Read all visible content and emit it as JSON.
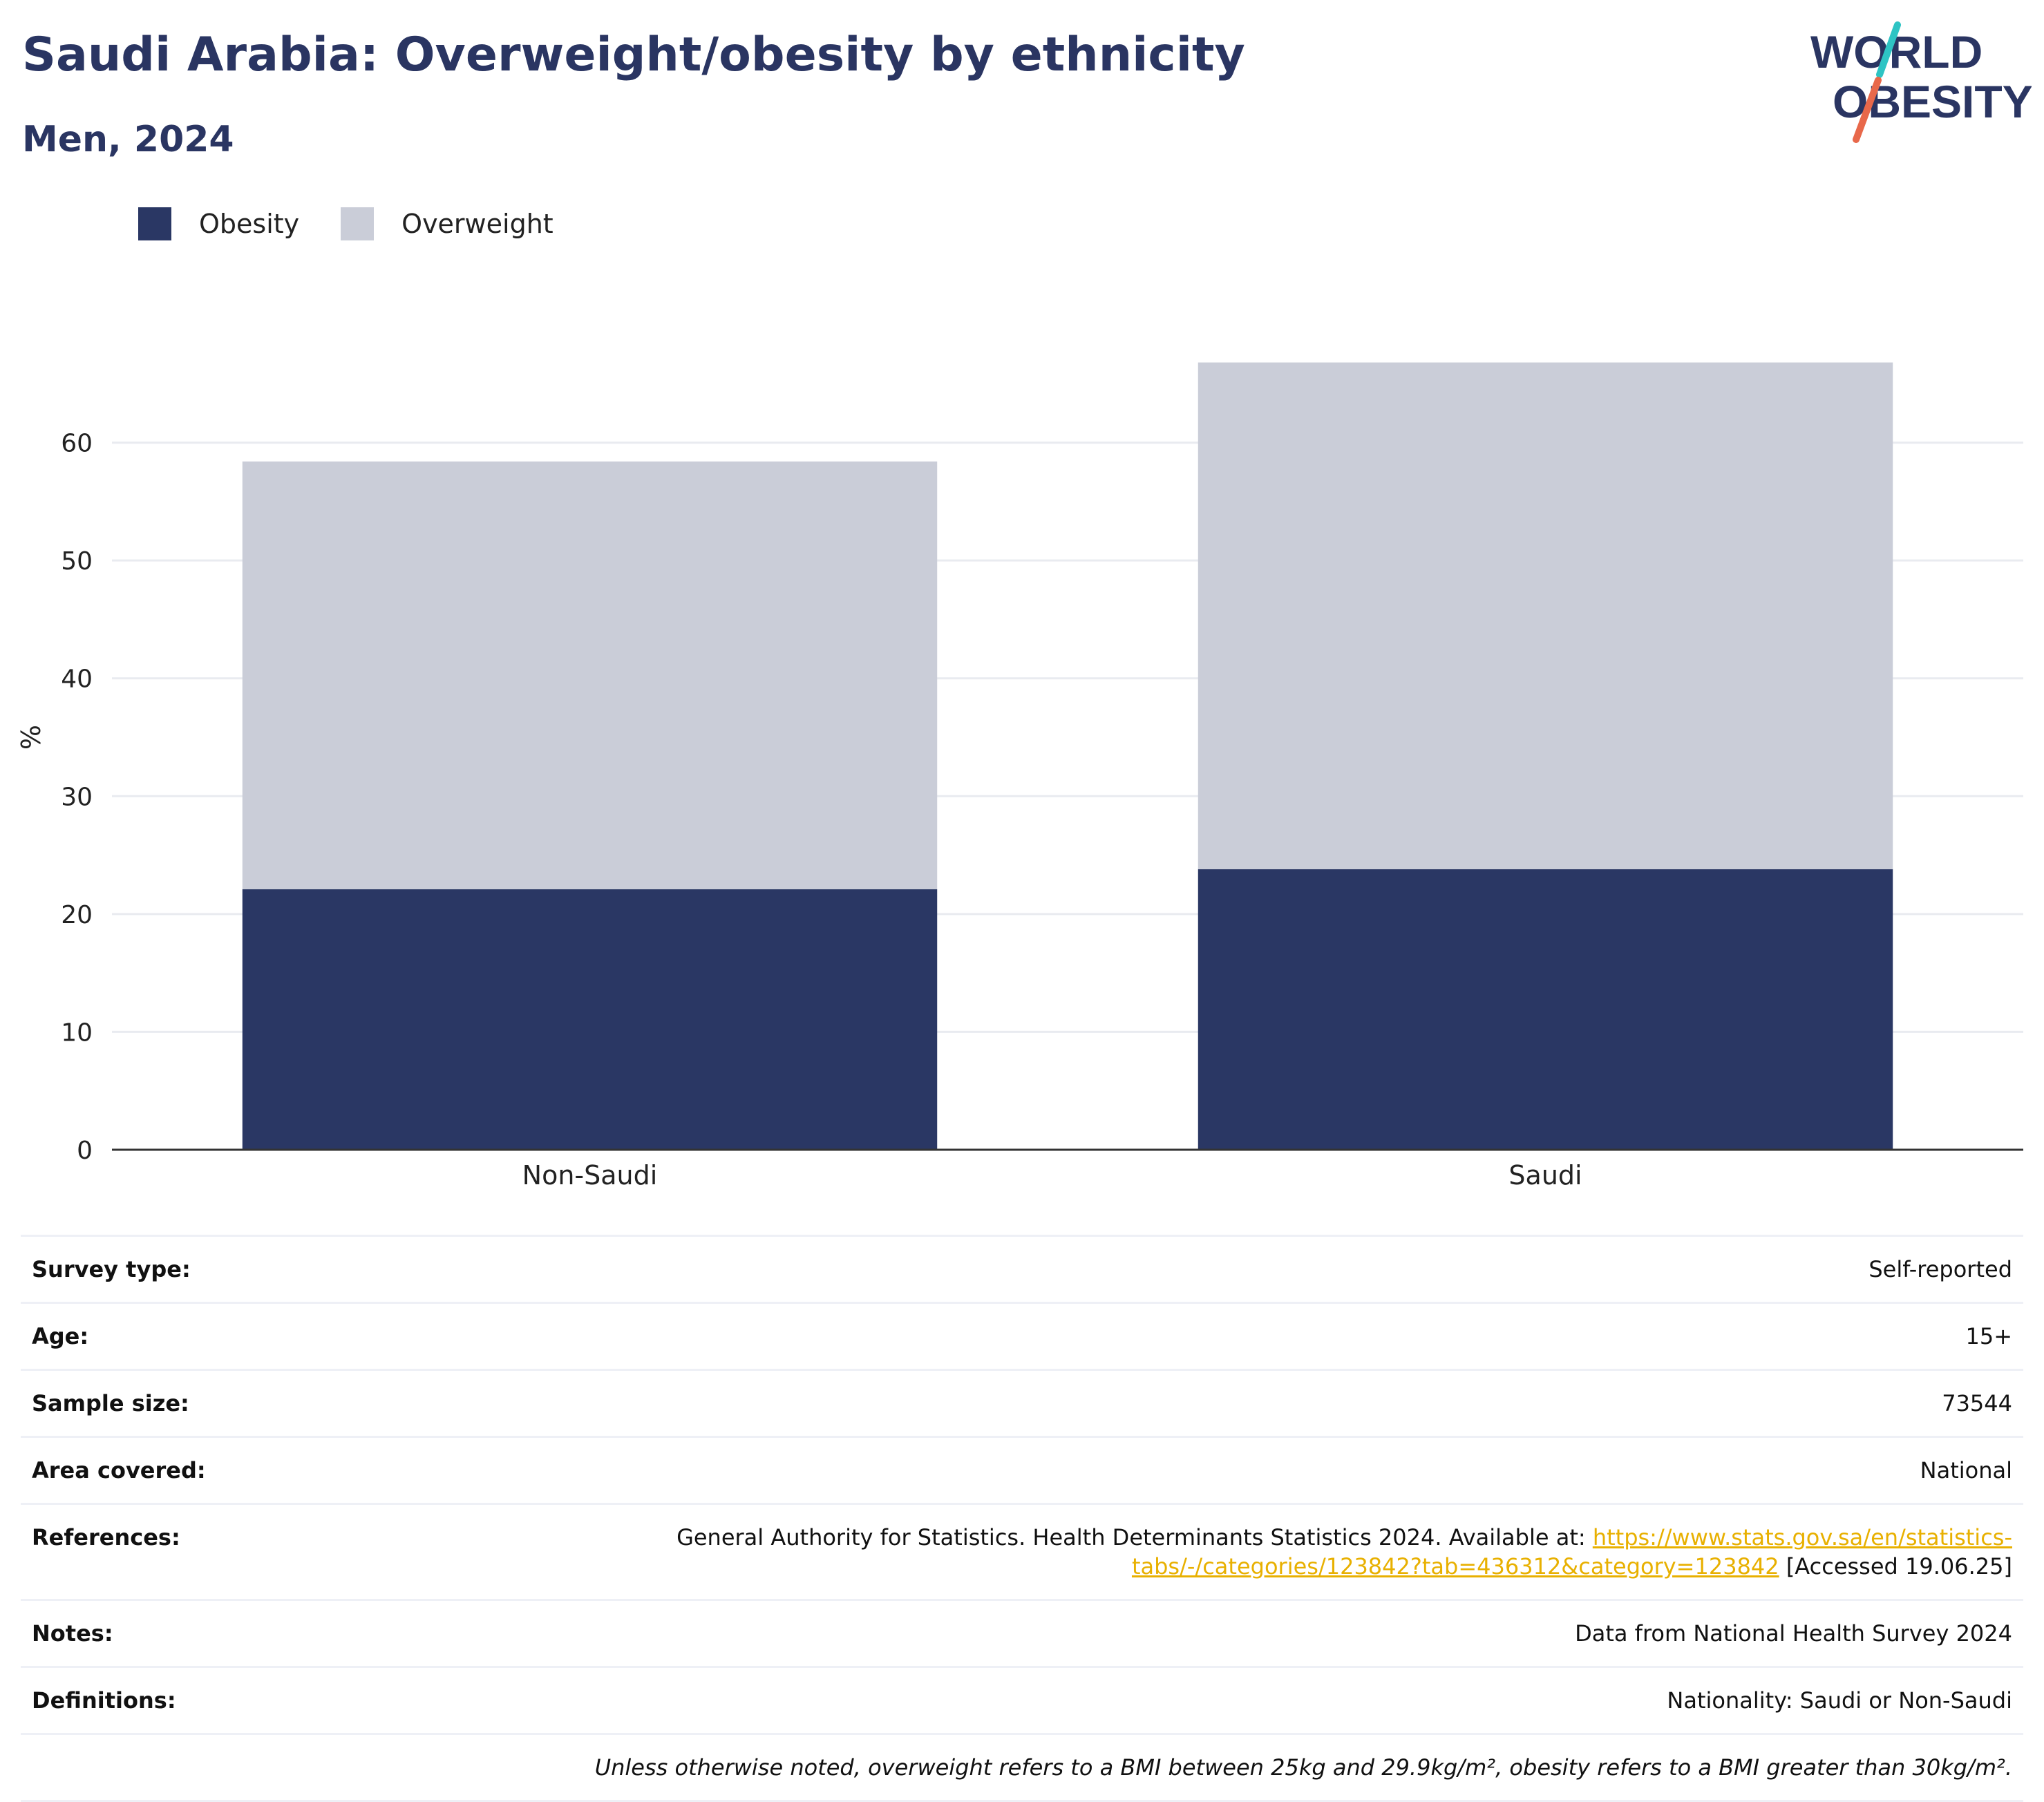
{
  "header": {
    "title": "Saudi Arabia: Overweight/obesity by ethnicity",
    "subtitle": "Men, 2024"
  },
  "logo": {
    "line1": "WORLD",
    "line2": "OBESITY",
    "colors": [
      "#2a3562",
      "#2ec4c4",
      "#e8684a"
    ]
  },
  "legend": [
    {
      "name": "Obesity",
      "color": "#2a3764"
    },
    {
      "name": "Overweight",
      "color": "#cacdd8"
    }
  ],
  "chart_data": {
    "type": "bar",
    "stacked": true,
    "categories": [
      "Non-Saudi",
      "Saudi"
    ],
    "series": [
      {
        "name": "Obesity",
        "color": "#2a3764",
        "values": [
          22.1,
          23.8
        ]
      },
      {
        "name": "Overweight",
        "color": "#cacdd8",
        "values": [
          36.3,
          43.0
        ]
      }
    ],
    "ylabel": "%",
    "ylim": [
      0,
      70
    ],
    "yticks": [
      0,
      10,
      20,
      30,
      40,
      50,
      60
    ],
    "grid": true,
    "legend_position": "top-left"
  },
  "info": [
    {
      "key": "Survey type:",
      "value": "Self-reported"
    },
    {
      "key": "Age:",
      "value": "15+"
    },
    {
      "key": "Sample size:",
      "value": "73544"
    },
    {
      "key": "Area covered:",
      "value": "National"
    },
    {
      "key": "References:",
      "value_before": "General Authority for Statistics. Health Determinants Statistics 2024. Available at: ",
      "link": "https://www.stats.gov.sa/en/statistics-tabs/-/categories/123842?tab=436312&category=123842",
      "value_after": " [Accessed 19.06.25]"
    },
    {
      "key": "Notes:",
      "value": "Data from National Health Survey 2024"
    },
    {
      "key": "Definitions:",
      "value": "Nationality: Saudi or Non-Saudi"
    },
    {
      "key": "",
      "value": "Unless otherwise noted, overweight refers to a BMI between 25kg and 29.9kg/m², obesity refers to a BMI greater than 30kg/m²."
    }
  ]
}
